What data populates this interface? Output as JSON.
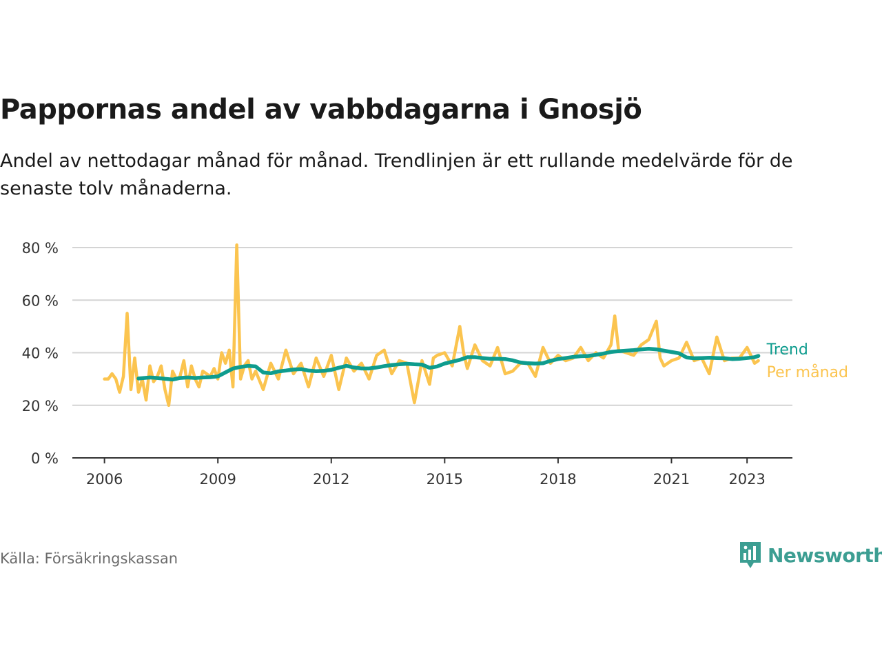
{
  "header": {
    "title": "Pappornas andel av vabbdagarna i Gnosjö",
    "subtitle": "Andel av nettodagar månad för månad. Trendlinjen är ett rullande medelvärde för de senaste tolv månaderna."
  },
  "footer": {
    "source": "Källa: Försäkringskassan",
    "brand": "Newsworthy"
  },
  "colors": {
    "monthly": "#fbc44f",
    "trend": "#0e9c8e",
    "grid": "#d4d4d4",
    "axis": "#333333",
    "brand": "#3c9e92"
  },
  "chart_data": {
    "type": "line",
    "title": "Pappornas andel av vabbdagarna i Gnosjö",
    "ylim": [
      0,
      85
    ],
    "y_ticks": [
      0,
      20,
      40,
      60,
      80
    ],
    "y_tick_labels": [
      "0 %",
      "20 %",
      "40 %",
      "60 %",
      "80 %"
    ],
    "x_ticks": [
      2006,
      2009,
      2012,
      2015,
      2018,
      2021,
      2023
    ],
    "x_tick_labels": [
      "2006",
      "2009",
      "2012",
      "2015",
      "2018",
      "2021",
      "2023"
    ],
    "xlim": [
      2005.15,
      2024.2
    ],
    "grid": true,
    "legend": "inline-right",
    "series": [
      {
        "name": "Per månad",
        "color": "#fbc44f",
        "x": [
          2006.0,
          2006.1,
          2006.2,
          2006.3,
          2006.4,
          2006.5,
          2006.6,
          2006.7,
          2006.8,
          2006.9,
          2007.0,
          2007.1,
          2007.2,
          2007.3,
          2007.4,
          2007.5,
          2007.6,
          2007.7,
          2007.8,
          2007.9,
          2008.0,
          2008.1,
          2008.2,
          2008.3,
          2008.4,
          2008.5,
          2008.6,
          2008.7,
          2008.8,
          2008.9,
          2009.0,
          2009.1,
          2009.2,
          2009.3,
          2009.4,
          2009.5,
          2009.6,
          2009.7,
          2009.8,
          2009.9,
          2010.0,
          2010.2,
          2010.4,
          2010.6,
          2010.8,
          2011.0,
          2011.2,
          2011.4,
          2011.6,
          2011.8,
          2012.0,
          2012.2,
          2012.4,
          2012.6,
          2012.8,
          2013.0,
          2013.2,
          2013.4,
          2013.6,
          2013.8,
          2014.0,
          2014.2,
          2014.4,
          2014.6,
          2014.7,
          2014.8,
          2015.0,
          2015.2,
          2015.4,
          2015.5,
          2015.6,
          2015.8,
          2016.0,
          2016.2,
          2016.4,
          2016.6,
          2016.8,
          2017.0,
          2017.2,
          2017.4,
          2017.6,
          2017.8,
          2018.0,
          2018.2,
          2018.4,
          2018.6,
          2018.8,
          2019.0,
          2019.2,
          2019.4,
          2019.5,
          2019.6,
          2019.8,
          2020.0,
          2020.2,
          2020.4,
          2020.6,
          2020.7,
          2020.8,
          2021.0,
          2021.2,
          2021.4,
          2021.6,
          2021.8,
          2022.0,
          2022.2,
          2022.4,
          2022.6,
          2022.8,
          2023.0,
          2023.2,
          2023.3
        ],
        "values": [
          30,
          30,
          32,
          30,
          25,
          31,
          55,
          26,
          38,
          25,
          30,
          22,
          35,
          29,
          31,
          35,
          26,
          20,
          33,
          30,
          31,
          37,
          27,
          35,
          30,
          27,
          33,
          32,
          31,
          34,
          30,
          40,
          36,
          41,
          27,
          81,
          30,
          35,
          37,
          30,
          33,
          26,
          36,
          30,
          41,
          32,
          36,
          27,
          38,
          31,
          39,
          26,
          38,
          33,
          36,
          30,
          39,
          41,
          32,
          37,
          36,
          21,
          37,
          28,
          38,
          39,
          40,
          35,
          50,
          40,
          34,
          43,
          37,
          35,
          42,
          32,
          33,
          36,
          36,
          31,
          42,
          36,
          39,
          37,
          38,
          42,
          37,
          40,
          38,
          43,
          54,
          41,
          40,
          39,
          43,
          45,
          52,
          38,
          35,
          37,
          38,
          44,
          37,
          38,
          32,
          46,
          37,
          38,
          38,
          42,
          36,
          37
        ]
      },
      {
        "name": "Trend",
        "color": "#0e9c8e",
        "x": [
          2006.9,
          2007.2,
          2007.4,
          2007.6,
          2007.8,
          2008.0,
          2008.2,
          2008.4,
          2008.6,
          2008.8,
          2009.0,
          2009.2,
          2009.4,
          2009.6,
          2009.8,
          2010.0,
          2010.2,
          2010.4,
          2010.6,
          2010.8,
          2011.0,
          2011.2,
          2011.4,
          2011.6,
          2011.8,
          2012.0,
          2012.2,
          2012.4,
          2012.6,
          2012.8,
          2013.0,
          2013.2,
          2013.4,
          2013.6,
          2013.8,
          2014.0,
          2014.2,
          2014.4,
          2014.6,
          2014.8,
          2015.0,
          2015.2,
          2015.4,
          2015.6,
          2015.8,
          2016.0,
          2016.2,
          2016.4,
          2016.6,
          2016.8,
          2017.0,
          2017.2,
          2017.4,
          2017.6,
          2017.8,
          2018.0,
          2018.2,
          2018.4,
          2018.6,
          2018.8,
          2019.0,
          2019.2,
          2019.4,
          2019.6,
          2019.8,
          2020.0,
          2020.2,
          2020.4,
          2020.6,
          2020.8,
          2021.0,
          2021.2,
          2021.4,
          2021.6,
          2021.8,
          2022.0,
          2022.2,
          2022.4,
          2022.6,
          2022.8,
          2023.0,
          2023.2,
          2023.3
        ],
        "values": [
          30.2,
          30.6,
          30.4,
          30.1,
          29.8,
          30.4,
          30.6,
          30.4,
          30.6,
          30.7,
          31.0,
          32.5,
          34.0,
          34.6,
          35.0,
          34.8,
          32.5,
          32.2,
          32.9,
          33.2,
          33.6,
          33.8,
          33.2,
          33.0,
          33.1,
          33.5,
          34.3,
          35.0,
          34.4,
          34.0,
          34.0,
          34.4,
          34.9,
          35.3,
          35.6,
          35.8,
          35.6,
          35.5,
          34.3,
          34.8,
          35.9,
          36.6,
          37.3,
          38.3,
          38.3,
          38.0,
          37.7,
          37.7,
          37.6,
          37.1,
          36.3,
          36.0,
          35.9,
          36.0,
          36.9,
          37.6,
          38.0,
          38.4,
          38.7,
          38.8,
          39.2,
          39.7,
          40.3,
          40.6,
          40.8,
          41.0,
          41.3,
          41.5,
          41.3,
          40.8,
          40.3,
          39.8,
          38.2,
          37.9,
          38.0,
          38.1,
          38.0,
          37.9,
          37.6,
          37.7,
          38.0,
          38.3,
          38.8
        ]
      }
    ]
  }
}
